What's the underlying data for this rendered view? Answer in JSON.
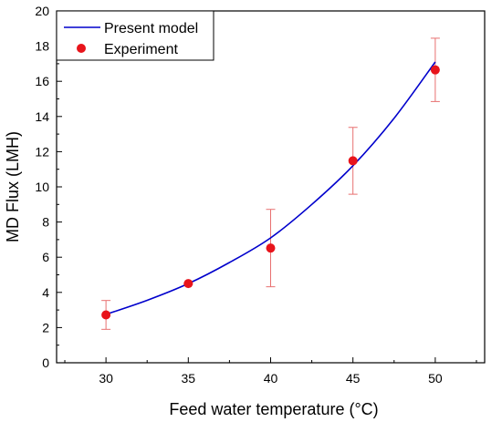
{
  "chart_data": {
    "type": "scatter",
    "title": "",
    "xlabel": "Feed water temperature (°C)",
    "ylabel": "MD Flux (LMH)",
    "xlim": [
      27,
      53
    ],
    "ylim": [
      0,
      20
    ],
    "xticks": [
      30,
      35,
      40,
      45,
      50
    ],
    "yticks": [
      0,
      2,
      4,
      6,
      8,
      10,
      12,
      14,
      16,
      18,
      20
    ],
    "grid": false,
    "legend_position": "top-left",
    "series": [
      {
        "name": "Present model",
        "kind": "line",
        "color": "#0000cc",
        "x": [
          30,
          32.5,
          35,
          37.5,
          40,
          42.5,
          45,
          47.5,
          50
        ],
        "y": [
          2.75,
          3.55,
          4.5,
          5.7,
          7.1,
          9.0,
          11.2,
          13.9,
          17.1
        ]
      },
      {
        "name": "Experiment",
        "kind": "scatter",
        "color": "#e8141b",
        "error_color": "#e87070",
        "x": [
          30,
          35,
          40,
          45,
          50
        ],
        "y": [
          2.72,
          4.5,
          6.52,
          11.48,
          16.65
        ],
        "yerr": [
          0.82,
          0.05,
          2.2,
          1.9,
          1.8
        ]
      }
    ]
  }
}
